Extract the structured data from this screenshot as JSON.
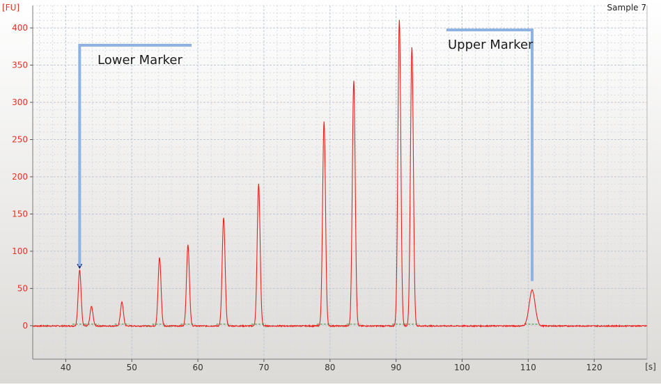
{
  "chart_data": {
    "type": "line",
    "sample_label": "Sample 7",
    "y_unit": "[FU]",
    "x_unit": "[s]",
    "xlim": [
      35,
      128
    ],
    "ylim": [
      -45,
      430
    ],
    "x_ticks": [
      40,
      50,
      60,
      70,
      80,
      90,
      100,
      110,
      120
    ],
    "y_ticks": [
      0,
      50,
      100,
      150,
      200,
      250,
      300,
      350,
      400
    ],
    "grid": true,
    "series": [
      {
        "color": "#e8201c",
        "peaks": [
          {
            "x": 42.1,
            "height": 75
          },
          {
            "x": 43.9,
            "height": 26
          },
          {
            "x": 48.5,
            "height": 32
          },
          {
            "x": 54.2,
            "height": 92
          },
          {
            "x": 58.5,
            "height": 109
          },
          {
            "x": 63.9,
            "height": 145
          },
          {
            "x": 69.2,
            "height": 191
          },
          {
            "x": 79.1,
            "height": 274
          },
          {
            "x": 83.6,
            "height": 330
          },
          {
            "x": 90.5,
            "height": 412
          },
          {
            "x": 92.4,
            "height": 375
          },
          {
            "x": 110.6,
            "height": 48
          }
        ]
      }
    ],
    "annotations": [
      {
        "label": "Lower Marker",
        "x": 42.1,
        "y": 80,
        "color": "#8fb3e0"
      },
      {
        "label": "Upper Marker",
        "x": 110.6,
        "y": 60,
        "color": "#8fb3e0"
      }
    ],
    "marker_point": {
      "x": 42.1,
      "y": 79,
      "color": "#1a1a6e"
    }
  }
}
